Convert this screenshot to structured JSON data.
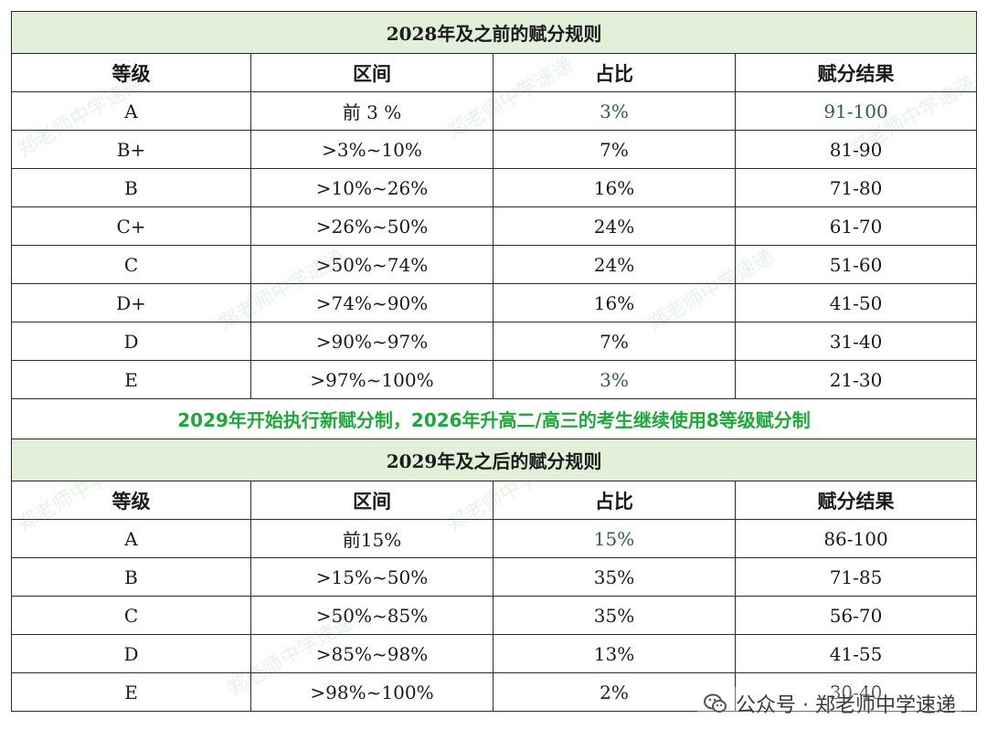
{
  "headers": [
    "等级",
    "区间",
    "占比",
    "赋分结果"
  ],
  "table1": {
    "title": "2028年及之前的赋分规则",
    "rows": [
      [
        "A",
        "前 3 %",
        "3%",
        "91-100"
      ],
      [
        "B+",
        ">3%~10%",
        "7%",
        "81-90"
      ],
      [
        "B",
        ">10%~26%",
        "16%",
        "71-80"
      ],
      [
        "C+",
        ">26%~50%",
        "24%",
        "61-70"
      ],
      [
        "C",
        ">50%~74%",
        "24%",
        "51-60"
      ],
      [
        "D+",
        ">74%~90%",
        "16%",
        "41-50"
      ],
      [
        "D",
        ">90%~97%",
        "7%",
        "31-40"
      ],
      [
        "E",
        ">97%~100%",
        "3%",
        "21-30"
      ]
    ]
  },
  "note": "2029年开始执行新赋分制，2026年升高二/高三的考生继续使用8等级赋分制",
  "table2": {
    "title": "2029年及之后的赋分规则",
    "rows": [
      [
        "A",
        "前15%",
        "15%",
        "86-100"
      ],
      [
        "B",
        ">15%~50%",
        "35%",
        "71-85"
      ],
      [
        "C",
        ">50%~85%",
        "35%",
        "56-70"
      ],
      [
        "D",
        ">85%~98%",
        "13%",
        "41-55"
      ],
      [
        "E",
        ">98%~100%",
        "2%",
        "30-40"
      ]
    ]
  },
  "watermark": {
    "text": "公众号 · 郑老师中学速递",
    "icon": "wechat-icon",
    "background_text": "郑老师中学速递"
  }
}
